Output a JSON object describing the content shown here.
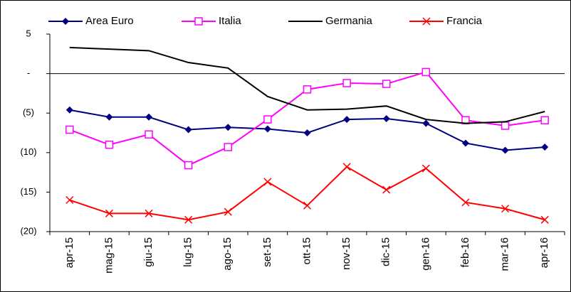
{
  "chart_data": {
    "type": "line",
    "categories": [
      "apr-15",
      "mag-15",
      "giu-15",
      "lug-15",
      "ago-15",
      "set-15",
      "ott-15",
      "nov-15",
      "dic-15",
      "gen-16",
      "feb-16",
      "mar-16",
      "apr-16"
    ],
    "series": [
      {
        "name": "Area Euro",
        "color": "#000080",
        "marker": "diamond",
        "values": [
          -4.6,
          -5.5,
          -5.5,
          -7.1,
          -6.8,
          -7.0,
          -7.5,
          -5.8,
          -5.7,
          -6.3,
          -8.8,
          -9.7,
          -9.3
        ]
      },
      {
        "name": "Italia",
        "color": "#ff00ff",
        "marker": "square",
        "values": [
          -7.1,
          -9.0,
          -7.7,
          -11.6,
          -9.3,
          -5.8,
          -2.0,
          -1.2,
          -1.3,
          0.2,
          -5.9,
          -6.6,
          -5.9
        ]
      },
      {
        "name": "Germania",
        "color": "#000000",
        "marker": "none",
        "values": [
          3.3,
          3.1,
          2.9,
          1.4,
          0.7,
          -2.9,
          -4.6,
          -4.5,
          -4.1,
          -5.8,
          -6.3,
          -6.1,
          -4.8
        ]
      },
      {
        "name": "Francia",
        "color": "#ff0000",
        "marker": "x",
        "values": [
          -16.0,
          -17.7,
          -17.7,
          -18.5,
          -17.5,
          -13.7,
          -16.7,
          -11.8,
          -14.7,
          -12.0,
          -16.3,
          -17.1,
          -18.5
        ]
      }
    ],
    "ylim": [
      -20,
      5
    ],
    "yticks": [
      5,
      {
        "value": 0,
        "label": "-"
      },
      {
        "value": -5,
        "label": "(5)"
      },
      {
        "value": -10,
        "label": "(10)"
      },
      {
        "value": -15,
        "label": "(15)"
      },
      {
        "value": -20,
        "label": "(20)"
      }
    ],
    "legend": "top",
    "grid": false
  }
}
